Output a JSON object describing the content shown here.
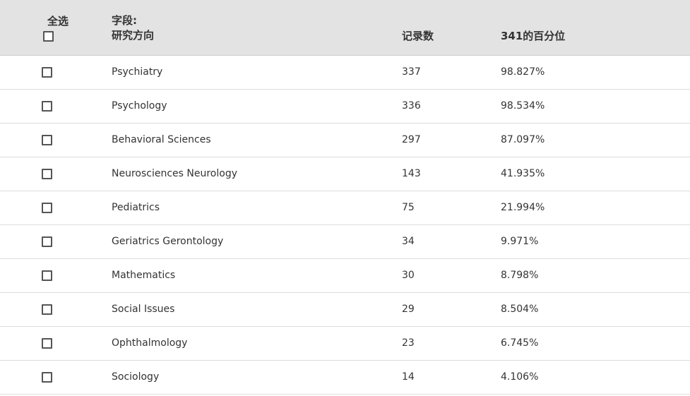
{
  "header": {
    "select_all_label": "全选",
    "field_label_line1": "字段:",
    "field_label_line2": "研究方向",
    "count_label": "记录数",
    "percent_label": "341的百分位"
  },
  "rows": [
    {
      "field": "Psychiatry",
      "count": "337",
      "percent": "98.827%"
    },
    {
      "field": "Psychology",
      "count": "336",
      "percent": "98.534%"
    },
    {
      "field": "Behavioral Sciences",
      "count": "297",
      "percent": "87.097%"
    },
    {
      "field": "Neurosciences Neurology",
      "count": "143",
      "percent": "41.935%"
    },
    {
      "field": "Pediatrics",
      "count": "75",
      "percent": "21.994%"
    },
    {
      "field": "Geriatrics Gerontology",
      "count": "34",
      "percent": "9.971%"
    },
    {
      "field": "Mathematics",
      "count": "30",
      "percent": "8.798%"
    },
    {
      "field": "Social Issues",
      "count": "29",
      "percent": "8.504%"
    },
    {
      "field": "Ophthalmology",
      "count": "23",
      "percent": "6.745%"
    },
    {
      "field": "Sociology",
      "count": "14",
      "percent": "4.106%"
    }
  ]
}
